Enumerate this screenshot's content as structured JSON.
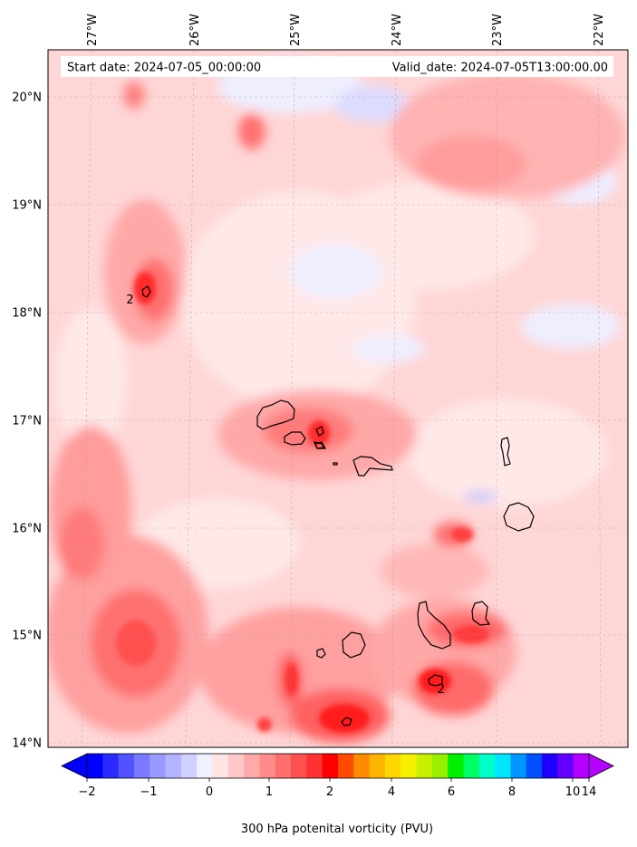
{
  "header": {
    "start_date": "Start date: 2024-07-05_00:00:00",
    "valid_date": "Valid_date: 2024-07-05T13:00:00.00"
  },
  "map": {
    "longitude_labels": [
      "27°W",
      "26°W",
      "25°W",
      "24°W",
      "23°W",
      "22°W"
    ],
    "latitude_labels": [
      "20°N",
      "19°N",
      "18°N",
      "17°N",
      "16°N",
      "15°N",
      "14°N"
    ],
    "contour_labels": [
      {
        "text": "2",
        "lat": 18.12,
        "lon": -26.62
      },
      {
        "text": "2",
        "lat": 14.5,
        "lon": -23.55
      }
    ],
    "field_colors": {
      "background": "#ffd6d6",
      "light_pink": "#ffe8e8",
      "pink": "#ffb3b3",
      "salmon": "#ff8c8c",
      "red": "#ff5a5a",
      "deep_red": "#ff1f1f",
      "pale_blue": "#eeeeff",
      "blue": "#c8c8ff"
    }
  },
  "colorbar": {
    "tick_labels": [
      "−2",
      "−1",
      "0",
      "1",
      "2",
      "4",
      "6",
      "8",
      "10",
      "14"
    ],
    "label": "300 hPa potenital vorticity (PVU)",
    "colors": [
      "#0000ff",
      "#2a2aff",
      "#5252ff",
      "#7a7aff",
      "#9999ff",
      "#b3b3ff",
      "#d1d1ff",
      "#f0f0ff",
      "#ffe4e4",
      "#ffc8c8",
      "#ffaaaa",
      "#ff8c8c",
      "#ff6e6e",
      "#ff5050",
      "#ff3232",
      "#ff0000",
      "#ff4b00",
      "#ff8c00",
      "#ffb400",
      "#ffd700",
      "#f5f000",
      "#c8f000",
      "#96f000",
      "#00f000",
      "#00ff64",
      "#00ffc8",
      "#00e6ff",
      "#0096ff",
      "#0050ff",
      "#1e00ff",
      "#6400ff",
      "#b400ff"
    ]
  }
}
